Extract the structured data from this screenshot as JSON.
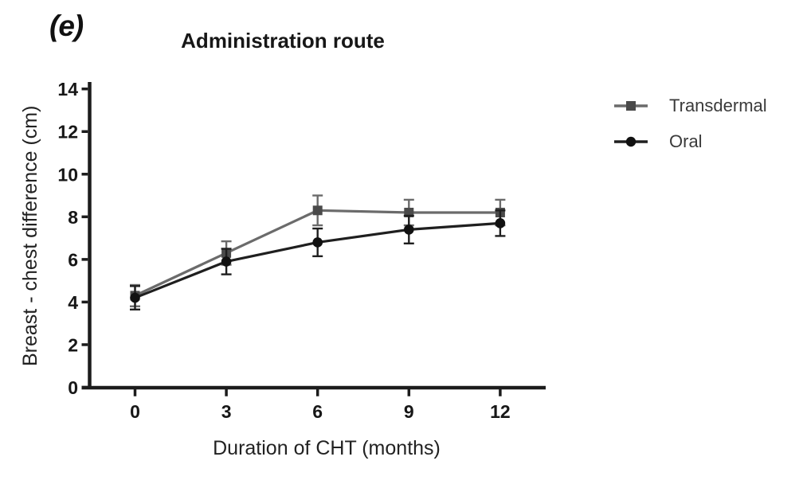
{
  "panel_label": "(e)",
  "colors": {
    "background": "#ffffff",
    "axis": "#1c1c1c",
    "tick_label": "#171717",
    "legend_text": "#3a3a3a"
  },
  "chart_data": {
    "type": "line",
    "title": "Administration route",
    "xlabel": "Duration of CHT (months)",
    "ylabel": "Breast - chest difference (cm)",
    "x": [
      0,
      3,
      6,
      9,
      12
    ],
    "x_tick_labels": [
      "0",
      "3",
      "6",
      "9",
      "12"
    ],
    "y_ticks": [
      0,
      2,
      4,
      6,
      8,
      10,
      12,
      14
    ],
    "ylim": [
      0,
      14
    ],
    "xlim": [
      -1.7,
      13.5
    ],
    "grid": false,
    "error_bars": true,
    "legend_position": "upper-right-outside",
    "series": [
      {
        "name": "Transdermal",
        "marker": "square",
        "line_color": "#6b6b6b",
        "marker_color": "#4a4a4a",
        "values": [
          4.3,
          6.3,
          8.3,
          8.2,
          8.2
        ],
        "errors": [
          0.5,
          0.55,
          0.7,
          0.6,
          0.6
        ]
      },
      {
        "name": "Oral",
        "marker": "circle",
        "line_color": "#1f1f1f",
        "marker_color": "#111111",
        "values": [
          4.2,
          5.9,
          6.8,
          7.4,
          7.7
        ],
        "errors": [
          0.55,
          0.6,
          0.65,
          0.65,
          0.6
        ]
      }
    ]
  }
}
